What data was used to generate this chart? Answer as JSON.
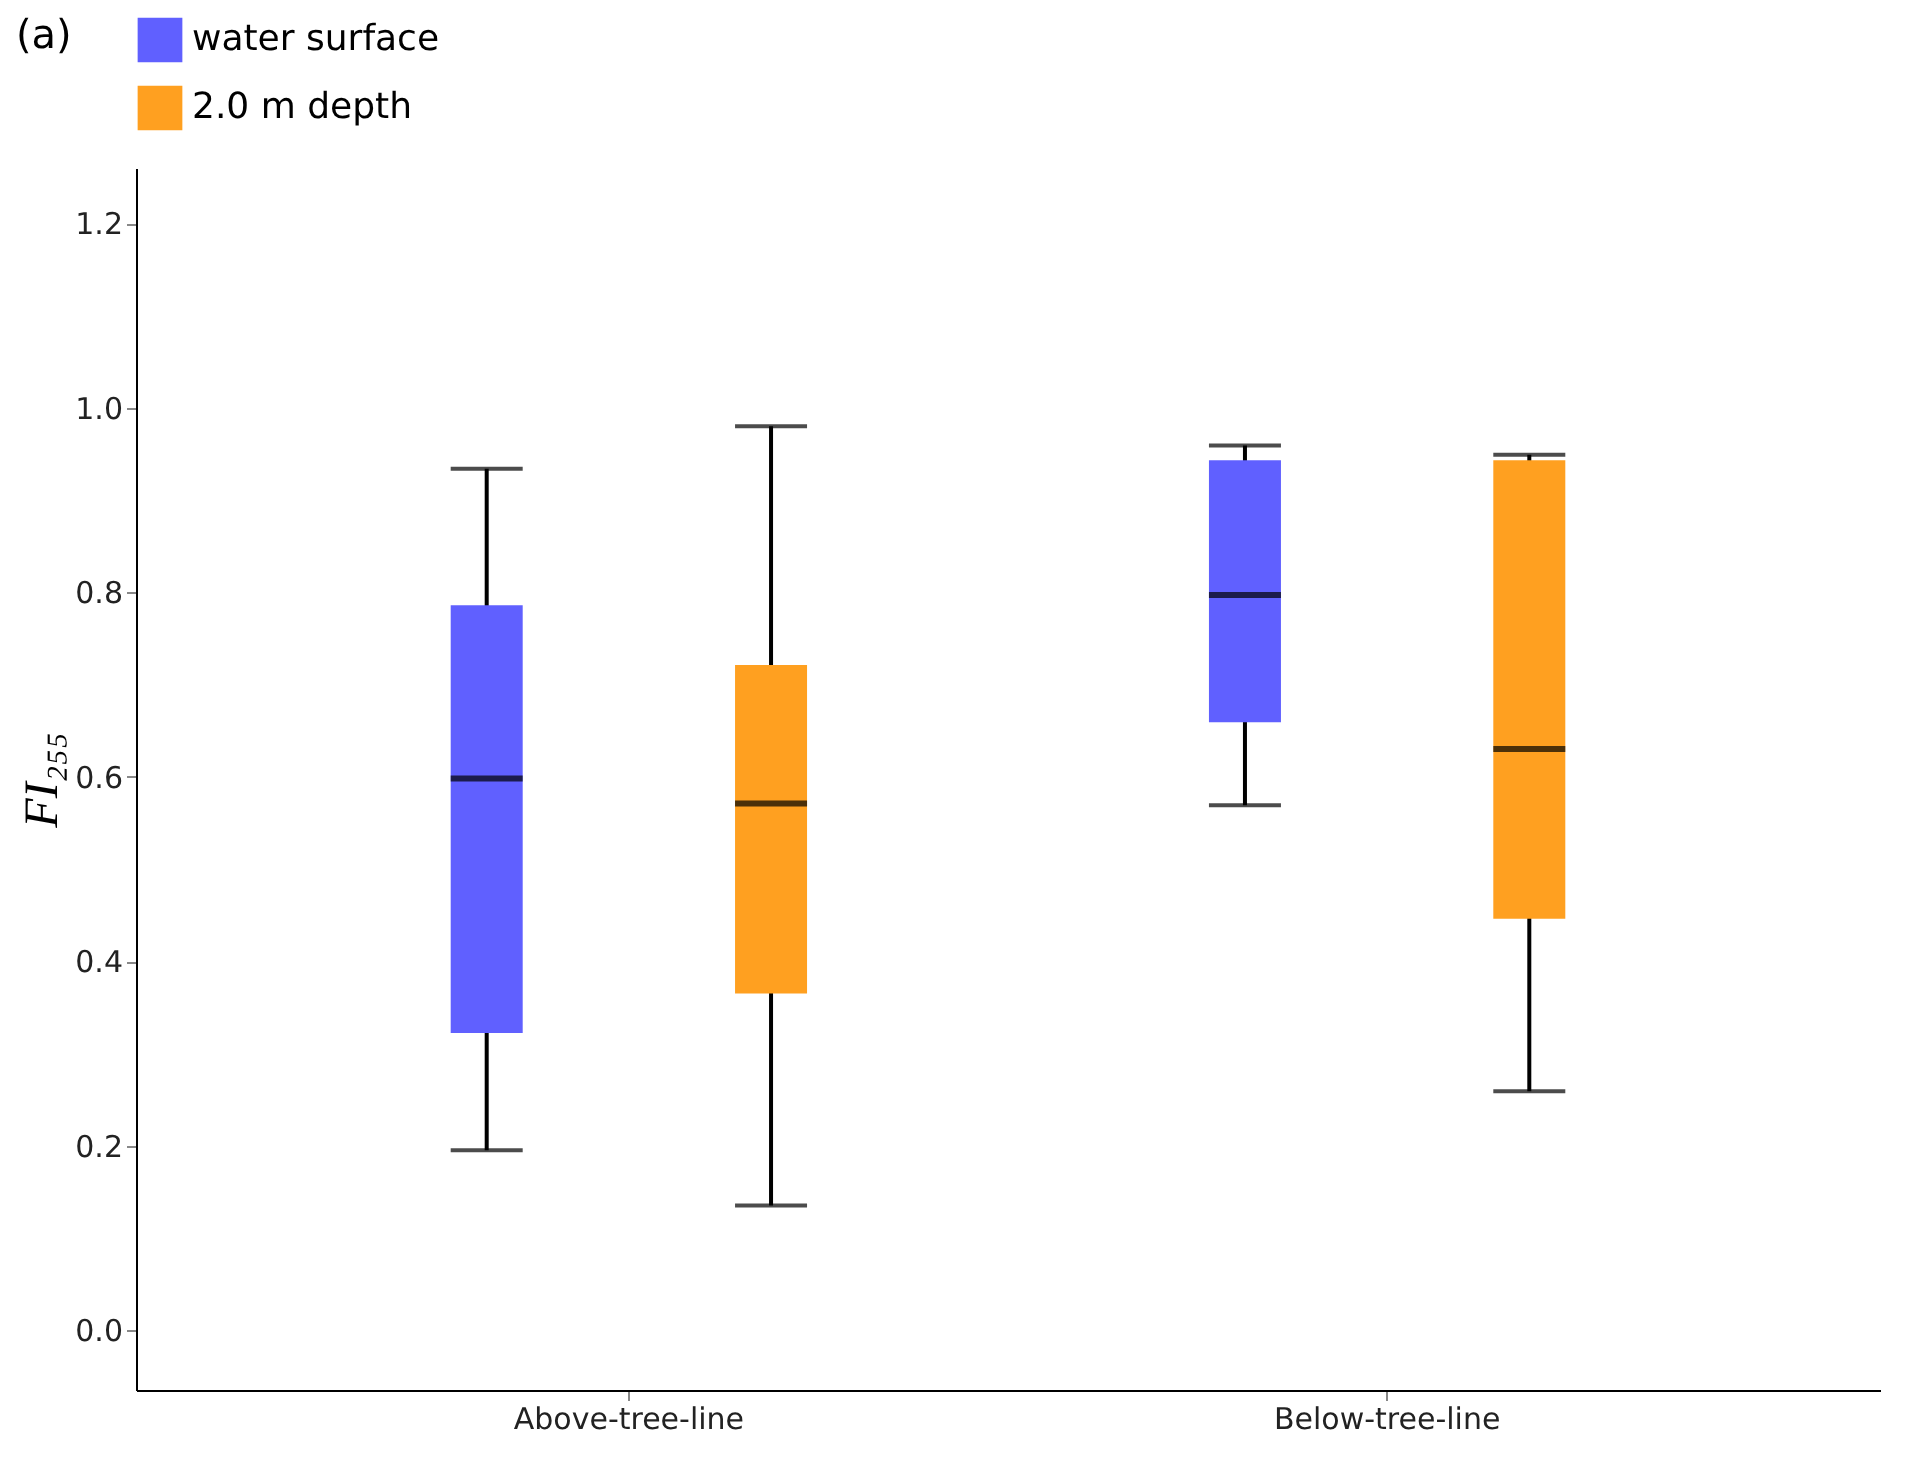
{
  "chart_data": {
    "type": "box",
    "ylabel": "FI₂₅₅",
    "annotations": [
      "(a)"
    ],
    "categories": [
      "Above-tree-line",
      "Below-tree-line"
    ],
    "ylim": [
      -0.065,
      1.26
    ],
    "yticks": [
      {
        "value": 0,
        "label": "0.0"
      },
      0.2,
      0.4,
      0.6,
      0.8,
      {
        "value": 1,
        "label": "1.0"
      },
      {
        "value": 1.2,
        "label": "1.2"
      }
    ],
    "legend": "top",
    "grid": false,
    "series": [
      {
        "name": "water surface",
        "color": "#6060ff",
        "boxes": [
          {
            "low": 0.195,
            "q1": 0.322,
            "median": 0.598,
            "q3": 0.786,
            "high": 0.934
          },
          {
            "low": 0.569,
            "q1": 0.659,
            "median": 0.797,
            "q3": 0.943,
            "high": 0.959
          }
        ]
      },
      {
        "name": "2.0 m depth",
        "color": "#ffa020",
        "boxes": [
          {
            "low": 0.135,
            "q1": 0.365,
            "median": 0.571,
            "q3": 0.721,
            "high": 0.98
          },
          {
            "low": 0.259,
            "q1": 0.446,
            "median": 0.63,
            "q3": 0.943,
            "high": 0.949
          }
        ]
      }
    ]
  }
}
